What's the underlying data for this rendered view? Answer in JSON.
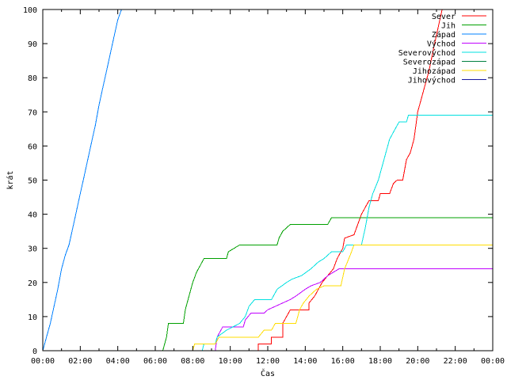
{
  "chart_data": {
    "type": "line",
    "xlabel": "Čas",
    "ylabel": "krát",
    "x_ticks": [
      "00:00",
      "02:00",
      "04:00",
      "06:00",
      "08:00",
      "10:00",
      "12:00",
      "14:00",
      "16:00",
      "18:00",
      "20:00",
      "22:00",
      "00:00"
    ],
    "y_ticks": [
      0,
      10,
      20,
      30,
      40,
      50,
      60,
      70,
      80,
      90,
      100
    ],
    "xlim_hours": [
      0,
      24
    ],
    "ylim": [
      0,
      100
    ],
    "grid": false,
    "legend_position": "top-right",
    "series": [
      {
        "name": "Sever",
        "color": "#ff0000",
        "points": [
          [
            11.5,
            0
          ],
          [
            11.5,
            2
          ],
          [
            12.2,
            2
          ],
          [
            12.2,
            4
          ],
          [
            12.8,
            4
          ],
          [
            12.8,
            8
          ],
          [
            13.0,
            10
          ],
          [
            13.2,
            12
          ],
          [
            14.2,
            12
          ],
          [
            14.2,
            14
          ],
          [
            14.5,
            16
          ],
          [
            14.7,
            18
          ],
          [
            14.9,
            20
          ],
          [
            15.2,
            22
          ],
          [
            15.5,
            24
          ],
          [
            15.7,
            27
          ],
          [
            16.0,
            30
          ],
          [
            16.1,
            33
          ],
          [
            16.6,
            34
          ],
          [
            16.8,
            37
          ],
          [
            17.0,
            40
          ],
          [
            17.2,
            42
          ],
          [
            17.4,
            44
          ],
          [
            17.9,
            44
          ],
          [
            18.0,
            46
          ],
          [
            18.5,
            46
          ],
          [
            18.7,
            49
          ],
          [
            18.9,
            50
          ],
          [
            19.2,
            50
          ],
          [
            19.4,
            56
          ],
          [
            19.6,
            58
          ],
          [
            19.8,
            62
          ],
          [
            20.0,
            70
          ],
          [
            20.3,
            76
          ],
          [
            20.6,
            82
          ],
          [
            20.9,
            90
          ],
          [
            21.3,
            100
          ]
        ]
      },
      {
        "name": "Jih",
        "color": "#00a000",
        "points": [
          [
            6.4,
            0
          ],
          [
            6.6,
            4
          ],
          [
            6.7,
            8
          ],
          [
            7.5,
            8
          ],
          [
            7.6,
            12
          ],
          [
            7.8,
            16
          ],
          [
            8.0,
            20
          ],
          [
            8.2,
            23
          ],
          [
            8.4,
            25
          ],
          [
            8.6,
            27
          ],
          [
            9.8,
            27
          ],
          [
            9.9,
            29
          ],
          [
            10.2,
            30
          ],
          [
            10.5,
            31
          ],
          [
            12.5,
            31
          ],
          [
            12.6,
            33
          ],
          [
            12.8,
            35
          ],
          [
            13.0,
            36
          ],
          [
            13.2,
            37
          ],
          [
            15.2,
            37
          ],
          [
            15.4,
            39
          ],
          [
            24,
            39
          ]
        ]
      },
      {
        "name": "Západ",
        "color": "#0080ff",
        "points": [
          [
            0,
            0
          ],
          [
            0.2,
            4
          ],
          [
            0.4,
            8
          ],
          [
            0.6,
            13
          ],
          [
            0.8,
            18
          ],
          [
            1.0,
            24
          ],
          [
            1.2,
            28
          ],
          [
            1.4,
            31
          ],
          [
            1.6,
            36
          ],
          [
            1.8,
            41
          ],
          [
            2.0,
            46
          ],
          [
            2.2,
            51
          ],
          [
            2.4,
            56
          ],
          [
            2.6,
            61
          ],
          [
            2.8,
            66
          ],
          [
            3.0,
            72
          ],
          [
            3.2,
            77
          ],
          [
            3.4,
            82
          ],
          [
            3.6,
            87
          ],
          [
            3.8,
            92
          ],
          [
            4.0,
            97
          ],
          [
            4.2,
            100
          ]
        ]
      },
      {
        "name": "Východ",
        "color": "#c000ff",
        "points": [
          [
            9.2,
            0
          ],
          [
            9.3,
            4
          ],
          [
            9.6,
            7
          ],
          [
            10.7,
            7
          ],
          [
            10.8,
            9
          ],
          [
            11.1,
            11
          ],
          [
            11.8,
            11
          ],
          [
            12.0,
            12
          ],
          [
            12.4,
            13
          ],
          [
            12.8,
            14
          ],
          [
            13.2,
            15
          ],
          [
            13.5,
            16
          ],
          [
            14.0,
            18
          ],
          [
            14.3,
            19
          ],
          [
            14.8,
            20
          ],
          [
            15.2,
            22
          ],
          [
            15.5,
            23
          ],
          [
            15.8,
            24
          ],
          [
            24,
            24
          ]
        ]
      },
      {
        "name": "Severovýchod",
        "color": "#00e0e0",
        "points": [
          [
            8.5,
            0
          ],
          [
            8.6,
            2
          ],
          [
            9.2,
            2
          ],
          [
            9.3,
            4
          ],
          [
            9.8,
            6
          ],
          [
            10.5,
            8
          ],
          [
            10.8,
            10
          ],
          [
            11.0,
            13
          ],
          [
            11.3,
            15
          ],
          [
            12.2,
            15
          ],
          [
            12.5,
            18
          ],
          [
            13.0,
            20
          ],
          [
            13.3,
            21
          ],
          [
            13.8,
            22
          ],
          [
            14.3,
            24
          ],
          [
            14.7,
            26
          ],
          [
            15.0,
            27
          ],
          [
            15.4,
            29
          ],
          [
            16.0,
            29
          ],
          [
            16.2,
            31
          ],
          [
            17.0,
            31
          ],
          [
            17.2,
            36
          ],
          [
            17.4,
            42
          ],
          [
            17.6,
            46
          ],
          [
            17.9,
            50
          ],
          [
            18.2,
            56
          ],
          [
            18.5,
            62
          ],
          [
            18.8,
            65
          ],
          [
            19.0,
            67
          ],
          [
            19.4,
            67
          ],
          [
            19.5,
            69
          ],
          [
            24,
            69
          ]
        ]
      },
      {
        "name": "Severozápad",
        "color": "#008040",
        "points": []
      },
      {
        "name": "Jihozápad",
        "color": "#ffdd00",
        "points": [
          [
            8.0,
            0
          ],
          [
            8.1,
            2
          ],
          [
            9.2,
            2
          ],
          [
            9.4,
            4
          ],
          [
            11.5,
            4
          ],
          [
            11.8,
            6
          ],
          [
            12.2,
            6
          ],
          [
            12.4,
            8
          ],
          [
            13.5,
            8
          ],
          [
            13.7,
            12
          ],
          [
            13.9,
            14
          ],
          [
            14.2,
            16
          ],
          [
            14.6,
            18
          ],
          [
            15.0,
            19
          ],
          [
            15.9,
            19
          ],
          [
            16.1,
            24
          ],
          [
            16.4,
            28
          ],
          [
            16.6,
            31
          ],
          [
            24,
            31
          ]
        ]
      },
      {
        "name": "Jihovýchod",
        "color": "#1a1aa0",
        "points": []
      }
    ]
  }
}
